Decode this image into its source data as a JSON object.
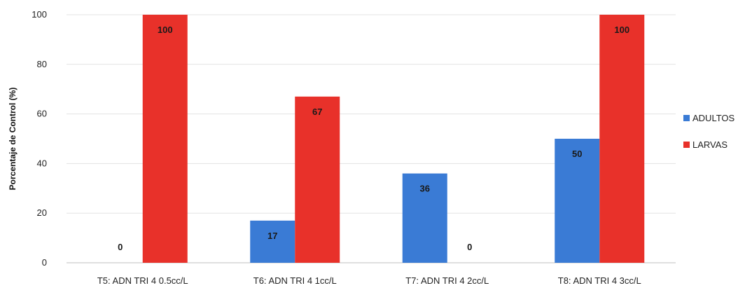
{
  "chart_data": {
    "type": "bar",
    "categories": [
      "T5: ADN TRI 4    0.5cc/L",
      "T6: ADN TRI 4    1cc/L",
      "T7: ADN TRI 4    2cc/L",
      "T8: ADN TRI 4    3cc/L"
    ],
    "series": [
      {
        "name": "ADULTOS",
        "color": "#3a7bd5",
        "values": [
          0,
          17,
          36,
          50
        ],
        "labels": [
          "0",
          "17",
          "36",
          "50"
        ]
      },
      {
        "name": "LARVAS",
        "color": "#e8312a",
        "values": [
          100,
          67,
          0,
          100
        ],
        "labels": [
          "100",
          "67",
          "0",
          "100"
        ]
      }
    ],
    "ylabel": "Porcentaje de Control (%)",
    "xlabel": "",
    "ylim": [
      0,
      100
    ],
    "yticks": [
      0,
      20,
      40,
      60,
      80,
      100
    ],
    "grid": true,
    "legend": "right"
  }
}
